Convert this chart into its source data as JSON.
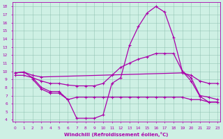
{
  "xlabel": "Windchill (Refroidissement éolien,°C)",
  "bg_color": "#cef0e4",
  "line_color": "#aa00aa",
  "grid_color": "#aaccbb",
  "ylim_min": 3.8,
  "ylim_max": 18.5,
  "xlim_min": -0.3,
  "xlim_max": 23.3,
  "line1_x": [
    0,
    1,
    2,
    3,
    19,
    20,
    21,
    22,
    23
  ],
  "line1_y": [
    9.8,
    9.9,
    9.5,
    9.3,
    9.8,
    9.5,
    8.8,
    8.5,
    8.5
  ],
  "line2_x": [
    0,
    1,
    2,
    3,
    4,
    5,
    6,
    7,
    8,
    9,
    10,
    11,
    12,
    13,
    14,
    15,
    16,
    17,
    18,
    19,
    20,
    21,
    22,
    23
  ],
  "line2_y": [
    9.8,
    9.9,
    9.2,
    8.0,
    7.5,
    7.5,
    6.5,
    4.2,
    4.2,
    4.2,
    4.6,
    8.5,
    9.2,
    13.2,
    15.5,
    17.2,
    18.0,
    17.3,
    14.2,
    10.0,
    8.8,
    6.9,
    6.2,
    6.2
  ],
  "line3_x": [
    0,
    1,
    2,
    3,
    4,
    5,
    6,
    7,
    8,
    9,
    10,
    11,
    12,
    13,
    14,
    15,
    16,
    17,
    18,
    19,
    20,
    21,
    22,
    23
  ],
  "line3_y": [
    9.5,
    9.5,
    9.2,
    8.8,
    8.5,
    8.5,
    8.3,
    8.2,
    8.2,
    8.2,
    8.5,
    9.5,
    10.5,
    11.0,
    11.5,
    11.8,
    12.2,
    12.2,
    12.2,
    10.0,
    9.2,
    7.0,
    6.8,
    6.5
  ],
  "line4_x": [
    2,
    3,
    4,
    5,
    6,
    7,
    8,
    9,
    10,
    11,
    12,
    13,
    14,
    15,
    16,
    17,
    18,
    19,
    20,
    21,
    22,
    23
  ],
  "line4_y": [
    9.0,
    7.8,
    7.3,
    7.3,
    6.5,
    6.8,
    6.8,
    6.8,
    6.8,
    6.8,
    6.8,
    6.8,
    6.8,
    6.8,
    6.8,
    6.8,
    6.8,
    6.8,
    6.5,
    6.5,
    6.2,
    6.2
  ]
}
